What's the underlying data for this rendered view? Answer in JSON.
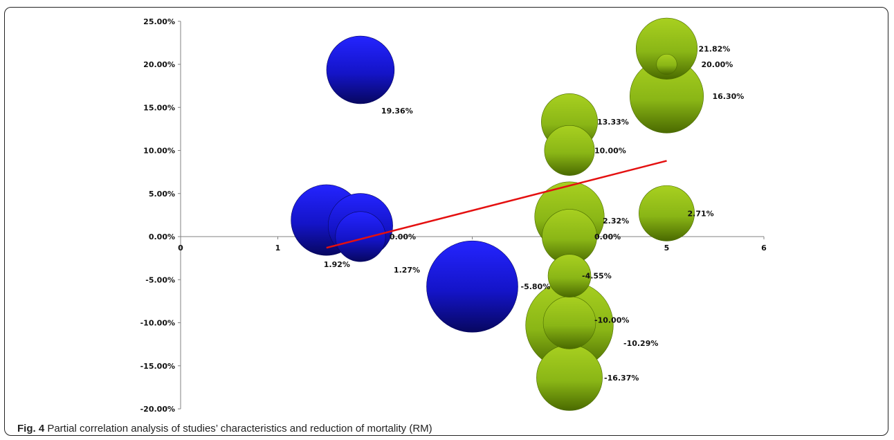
{
  "caption": {
    "figure_label": "Fig. 4",
    "text": " Partial correlation analysis of studies’ characteristics and reduction of mortality (RM)"
  },
  "colors": {
    "blue": "#1a1aee",
    "blue_dark": "#070760",
    "green": "#9bc41c",
    "green_dark": "#4a6a00",
    "trend": "#e41010",
    "axis": "#808080"
  },
  "chart_data": {
    "type": "scatter",
    "subtype": "bubble",
    "title": "",
    "xlabel": "",
    "ylabel": "",
    "xlim": [
      0,
      6
    ],
    "ylim": [
      -20,
      25
    ],
    "x_ticks": [
      "0",
      "1",
      "2",
      "3",
      "4",
      "5",
      "6"
    ],
    "y_ticks": [
      "25.00%",
      "20.00%",
      "15.00%",
      "10.00%",
      "5.00%",
      "0.00%",
      "-5.00%",
      "-10.00%",
      "-15.00%",
      "-20.00%"
    ],
    "grid": false,
    "legend": false,
    "series": [
      {
        "color": "blue",
        "points": [
          {
            "x": 1.85,
            "y": 19.36,
            "size": 0.55,
            "label": "19.36%"
          },
          {
            "x": 1.5,
            "y": 1.92,
            "size": 0.6,
            "label": "1.92%"
          },
          {
            "x": 1.85,
            "y": 1.27,
            "size": 0.5,
            "label": "1.27%"
          },
          {
            "x": 1.85,
            "y": 0.0,
            "size": 0.3,
            "label": "0.00%"
          },
          {
            "x": 3.0,
            "y": -5.8,
            "size": 1.0,
            "label": "-5.80%"
          }
        ]
      },
      {
        "color": "green",
        "points": [
          {
            "x": 5.0,
            "y": 21.82,
            "size": 0.45,
            "label": "21.82%"
          },
          {
            "x": 5.0,
            "y": 20.0,
            "size": 0.05,
            "label": "20.00%"
          },
          {
            "x": 5.0,
            "y": 16.3,
            "size": 0.65,
            "label": "16.30%"
          },
          {
            "x": 4.0,
            "y": 13.33,
            "size": 0.38,
            "label": "13.33%"
          },
          {
            "x": 4.0,
            "y": 10.0,
            "size": 0.3,
            "label": "10.00%"
          },
          {
            "x": 5.0,
            "y": 2.71,
            "size": 0.37,
            "label": "2.71%"
          },
          {
            "x": 4.0,
            "y": 2.32,
            "size": 0.58,
            "label": "2.32%"
          },
          {
            "x": 4.0,
            "y": 0.0,
            "size": 0.36,
            "label": "0.00%"
          },
          {
            "x": 4.0,
            "y": -4.55,
            "size": 0.22,
            "label": "-4.55%"
          },
          {
            "x": 4.0,
            "y": -10.29,
            "size": 0.92,
            "label": "-10.29%"
          },
          {
            "x": 4.0,
            "y": -10.0,
            "size": 0.33,
            "label": "-10.00%"
          },
          {
            "x": 4.0,
            "y": -16.37,
            "size": 0.52,
            "label": "-16.37%"
          }
        ]
      }
    ],
    "trendline": {
      "x": [
        1.5,
        5.0
      ],
      "y": [
        -1.3,
        8.8
      ]
    }
  }
}
